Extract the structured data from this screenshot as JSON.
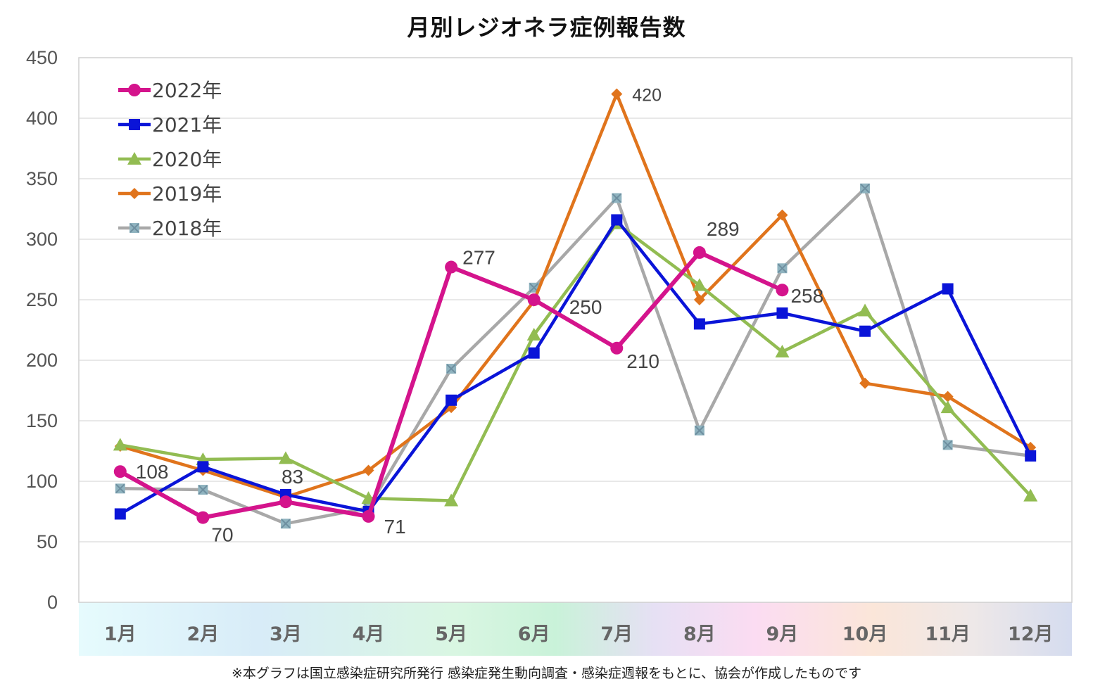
{
  "colors": {
    "s2022": "#d4148c",
    "s2021": "#0a14d8",
    "s2020": "#92bc52",
    "s2019": "#e0741c",
    "s2018": "#a8a8a8",
    "grid": "#d9d9d9"
  },
  "chart_data": {
    "type": "line",
    "title": "月別レジオネラ症例報告数",
    "categories": [
      "1月",
      "2月",
      "3月",
      "4月",
      "5月",
      "6月",
      "7月",
      "8月",
      "9月",
      "10月",
      "11月",
      "12月"
    ],
    "ylim": [
      0,
      450
    ],
    "yticks": [
      0,
      50,
      100,
      150,
      200,
      250,
      300,
      350,
      400,
      450
    ],
    "grid": true,
    "legend": "top-left",
    "series": [
      {
        "name": "2022年",
        "key": "s2022",
        "marker": "circle",
        "values": [
          108,
          70,
          83,
          71,
          277,
          250,
          210,
          289,
          258,
          null,
          null,
          null
        ]
      },
      {
        "name": "2021年",
        "key": "s2021",
        "marker": "square",
        "values": [
          73,
          112,
          89,
          75,
          167,
          206,
          316,
          230,
          239,
          224,
          259,
          121
        ]
      },
      {
        "name": "2020年",
        "key": "s2020",
        "marker": "triangle",
        "values": [
          130,
          118,
          119,
          86,
          84,
          221,
          313,
          262,
          207,
          241,
          161,
          88
        ]
      },
      {
        "name": "2019年",
        "key": "s2019",
        "marker": "diamond",
        "values": [
          129,
          109,
          87,
          109,
          161,
          249,
          420,
          250,
          320,
          181,
          170,
          128
        ]
      },
      {
        "name": "2018年",
        "key": "s2018",
        "marker": "x-square",
        "values": [
          94,
          93,
          65,
          78,
          193,
          260,
          334,
          142,
          276,
          342,
          130,
          121
        ]
      }
    ],
    "annotations": [
      {
        "series": "2022年",
        "month": "1月",
        "text": "108"
      },
      {
        "series": "2022年",
        "month": "2月",
        "text": "70"
      },
      {
        "series": "2022年",
        "month": "3月",
        "text": "83"
      },
      {
        "series": "2022年",
        "month": "4月",
        "text": "71"
      },
      {
        "series": "2022年",
        "month": "5月",
        "text": "277"
      },
      {
        "series": "2022年",
        "month": "6月",
        "text": "250"
      },
      {
        "series": "2022年",
        "month": "7月",
        "text": "210"
      },
      {
        "series": "2022年",
        "month": "8月",
        "text": "289"
      },
      {
        "series": "2022年",
        "month": "9月",
        "text": "258"
      },
      {
        "series": "2019年",
        "month": "7月",
        "text": "420"
      }
    ]
  },
  "footnote": "※本グラフは国立感染症研究所発行 感染症発生動向調査・感染症週報をもとに、協会が作成したものです"
}
